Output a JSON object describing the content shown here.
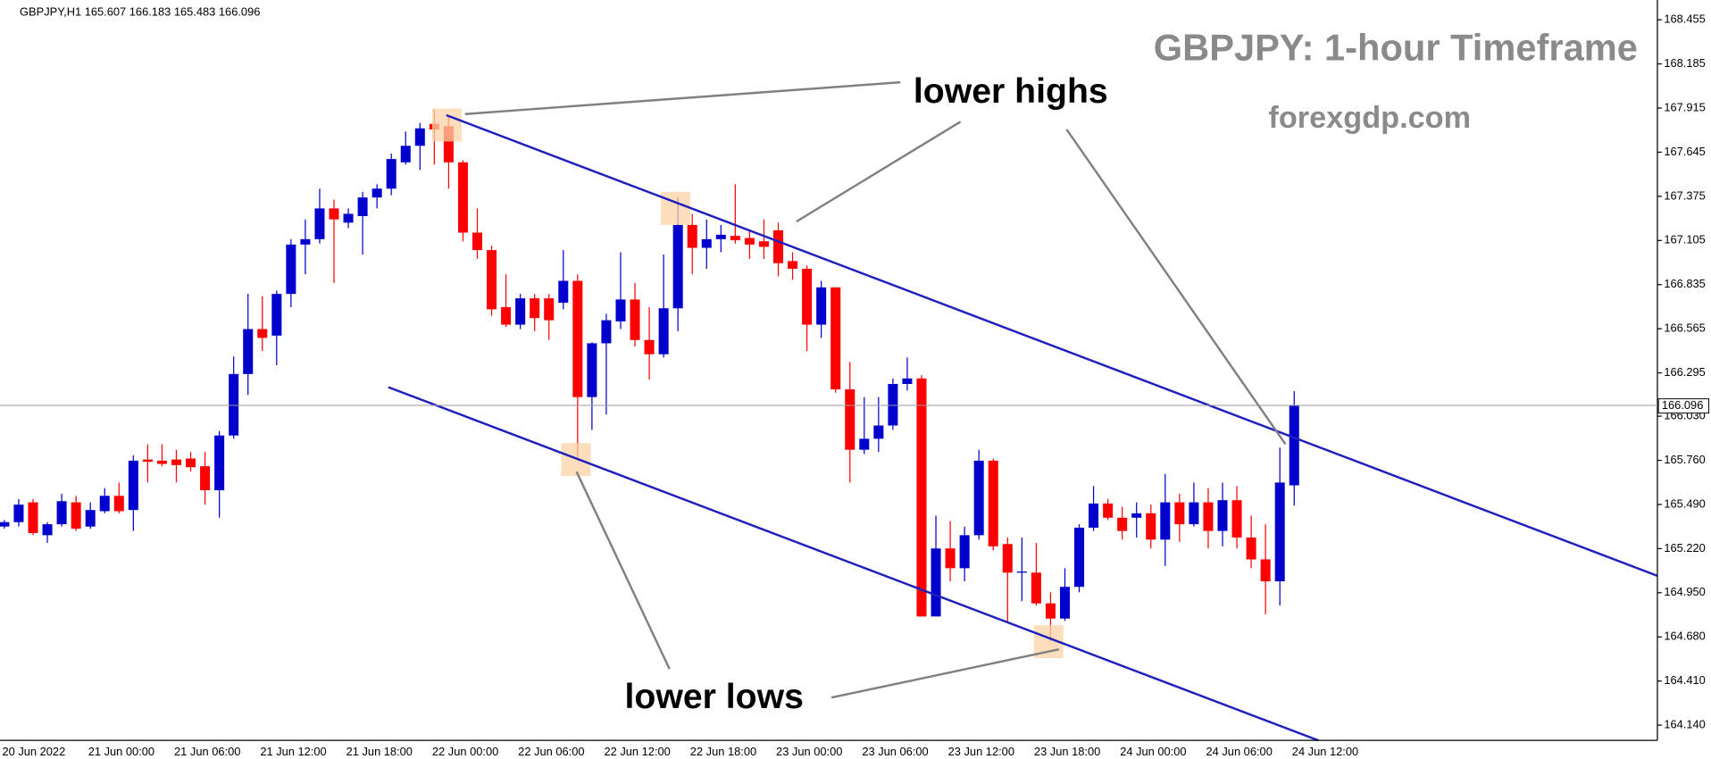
{
  "chart_data": {
    "type": "candlestick",
    "symbol": "GBPJPY,H1",
    "title": "GBPJPY: 1-hour Timeframe",
    "subtitle": "forexgdp.com",
    "annotations": [
      "lower highs",
      "lower lows"
    ],
    "up_color": "#0000cc",
    "down_color": "#ff0000",
    "categories": [
      "20 Jun 2022",
      null,
      null,
      null,
      null,
      null,
      "21 Jun 00:00",
      null,
      null,
      null,
      null,
      null,
      "21 Jun 06:00",
      null,
      null,
      null,
      null,
      null,
      "21 Jun 12:00",
      null,
      null,
      null,
      null,
      null,
      "21 Jun 18:00",
      null,
      null,
      null,
      null,
      null,
      "22 Jun 00:00",
      null,
      null,
      null,
      null,
      null,
      "22 Jun 06:00",
      null,
      null,
      null,
      null,
      null,
      "22 Jun 12:00",
      null,
      null,
      null,
      null,
      null,
      "22 Jun 18:00",
      null,
      null,
      null,
      null,
      null,
      "23 Jun 00:00",
      null,
      null,
      null,
      null,
      null,
      "23 Jun 06:00",
      null,
      null,
      null,
      null,
      null,
      "23 Jun 12:00",
      null,
      null,
      null,
      null,
      null,
      "23 Jun 18:00",
      null,
      null,
      null,
      null,
      null,
      "24 Jun 00:00",
      null,
      null,
      null,
      null,
      null,
      "24 Jun 06:00",
      null,
      null,
      null,
      null,
      null,
      "24 Jun 12:00"
    ],
    "open": [
      165.355,
      165.382,
      165.503,
      165.302,
      165.369,
      165.503,
      165.355,
      165.449,
      165.543,
      165.456,
      165.765,
      165.758,
      165.765,
      165.771,
      165.724,
      165.577,
      165.912,
      166.288,
      166.563,
      166.523,
      166.778,
      167.08,
      167.113,
      167.301,
      167.214,
      167.254,
      167.368,
      167.422,
      167.583,
      167.684,
      167.818,
      167.804,
      167.583,
      167.153,
      167.046,
      166.697,
      166.59,
      166.751,
      166.751,
      166.724,
      166.858,
      166.147,
      166.476,
      166.61,
      166.744,
      166.496,
      166.409,
      166.69,
      167.2,
      167.06,
      167.113,
      167.133,
      167.12,
      167.1,
      167.167,
      166.979,
      166.932,
      166.59,
      166.818,
      166.194,
      165.825,
      165.892,
      165.973,
      166.227,
      166.261,
      164.805,
      165.221,
      165.1,
      165.302,
      165.758,
      165.248,
      165.073,
      165.073,
      164.885,
      164.792,
      164.986,
      165.348,
      165.496,
      165.409,
      165.409,
      165.436,
      165.275,
      165.503,
      165.369,
      165.503,
      165.328,
      165.516,
      165.288,
      165.154,
      165.02,
      165.607
    ],
    "high": [
      165.395,
      165.523,
      165.523,
      165.382,
      165.556,
      165.543,
      165.503,
      165.59,
      165.624,
      165.791,
      165.858,
      165.858,
      165.825,
      165.811,
      165.811,
      165.939,
      166.395,
      166.778,
      166.764,
      166.798,
      167.113,
      167.234,
      167.422,
      167.355,
      167.301,
      167.402,
      167.449,
      167.637,
      167.771,
      167.824,
      167.905,
      167.871,
      167.596,
      167.301,
      167.073,
      166.898,
      166.778,
      166.778,
      166.778,
      167.046,
      166.898,
      166.482,
      166.657,
      167.033,
      166.845,
      166.697,
      167.019,
      167.368,
      167.268,
      167.234,
      167.2,
      167.449,
      167.167,
      167.234,
      167.214,
      167.033,
      166.952,
      166.858,
      166.818,
      166.362,
      166.147,
      166.147,
      166.261,
      166.389,
      166.281,
      165.422,
      165.389,
      165.355,
      165.825,
      165.771,
      165.288,
      165.288,
      165.255,
      164.953,
      165.1,
      165.369,
      165.603,
      165.523,
      165.476,
      165.503,
      165.489,
      165.677,
      165.556,
      165.624,
      165.59,
      165.624,
      165.603,
      165.422,
      165.369,
      165.838,
      166.183
    ],
    "low": [
      165.342,
      165.355,
      165.302,
      165.255,
      165.355,
      165.328,
      165.342,
      165.436,
      165.436,
      165.328,
      165.624,
      165.724,
      165.624,
      165.691,
      165.489,
      165.409,
      165.892,
      166.16,
      166.429,
      166.342,
      166.697,
      166.898,
      167.086,
      166.845,
      167.18,
      167.019,
      167.301,
      167.382,
      167.569,
      167.536,
      167.569,
      167.422,
      167.1,
      166.992,
      166.644,
      166.576,
      166.563,
      166.55,
      166.496,
      166.684,
      165.758,
      165.946,
      166.04,
      166.563,
      166.456,
      166.254,
      166.389,
      166.55,
      166.898,
      166.932,
      167.033,
      167.086,
      166.992,
      166.992,
      166.885,
      166.865,
      166.429,
      166.509,
      166.174,
      165.624,
      165.798,
      165.811,
      165.946,
      166.187,
      164.805,
      164.805,
      165.02,
      165.02,
      165.275,
      165.208,
      164.765,
      164.899,
      164.872,
      164.651,
      164.778,
      164.953,
      165.328,
      165.395,
      165.275,
      165.288,
      165.221,
      165.114,
      165.261,
      165.355,
      165.221,
      165.234,
      165.221,
      165.1,
      164.818,
      164.872,
      165.483
    ],
    "close": [
      165.382,
      165.489,
      165.315,
      165.369,
      165.51,
      165.342,
      165.456,
      165.543,
      165.449,
      165.758,
      165.751,
      165.738,
      165.731,
      165.718,
      165.577,
      165.912,
      166.288,
      166.563,
      166.509,
      166.778,
      167.08,
      167.113,
      167.301,
      167.234,
      167.268,
      167.368,
      167.422,
      167.603,
      167.684,
      167.791,
      167.784,
      167.583,
      167.153,
      167.046,
      166.684,
      166.59,
      166.751,
      166.63,
      166.617,
      166.858,
      166.147,
      166.476,
      166.617,
      166.744,
      166.496,
      166.409,
      166.69,
      167.2,
      167.06,
      167.113,
      167.14,
      167.107,
      167.08,
      167.066,
      166.966,
      166.932,
      166.59,
      166.818,
      166.194,
      165.825,
      165.892,
      165.973,
      166.227,
      166.261,
      164.805,
      165.221,
      165.1,
      165.302,
      165.758,
      165.234,
      165.073,
      165.08,
      164.885,
      164.792,
      164.986,
      165.348,
      165.496,
      165.409,
      165.328,
      165.436,
      165.275,
      165.503,
      165.369,
      165.503,
      165.328,
      165.516,
      165.288,
      165.154,
      165.02,
      165.624,
      166.096
    ],
    "ylim": [
      164.047,
      168.576
    ],
    "yticks": [
      168.455,
      168.185,
      167.915,
      167.645,
      167.375,
      167.105,
      166.835,
      166.565,
      166.295,
      {
        "value": 166.03,
        "label": "166.030"
      },
      {
        "value": 165.76,
        "label": "165.760"
      },
      {
        "value": 165.49,
        "label": "165.490"
      },
      {
        "value": 165.22,
        "label": "165.220"
      },
      {
        "value": 164.95,
        "label": "164.950"
      },
      {
        "value": 164.68,
        "label": "164.680"
      },
      {
        "value": 164.41,
        "label": "164.410"
      },
      {
        "value": 164.14,
        "label": "164.140"
      }
    ]
  }
}
